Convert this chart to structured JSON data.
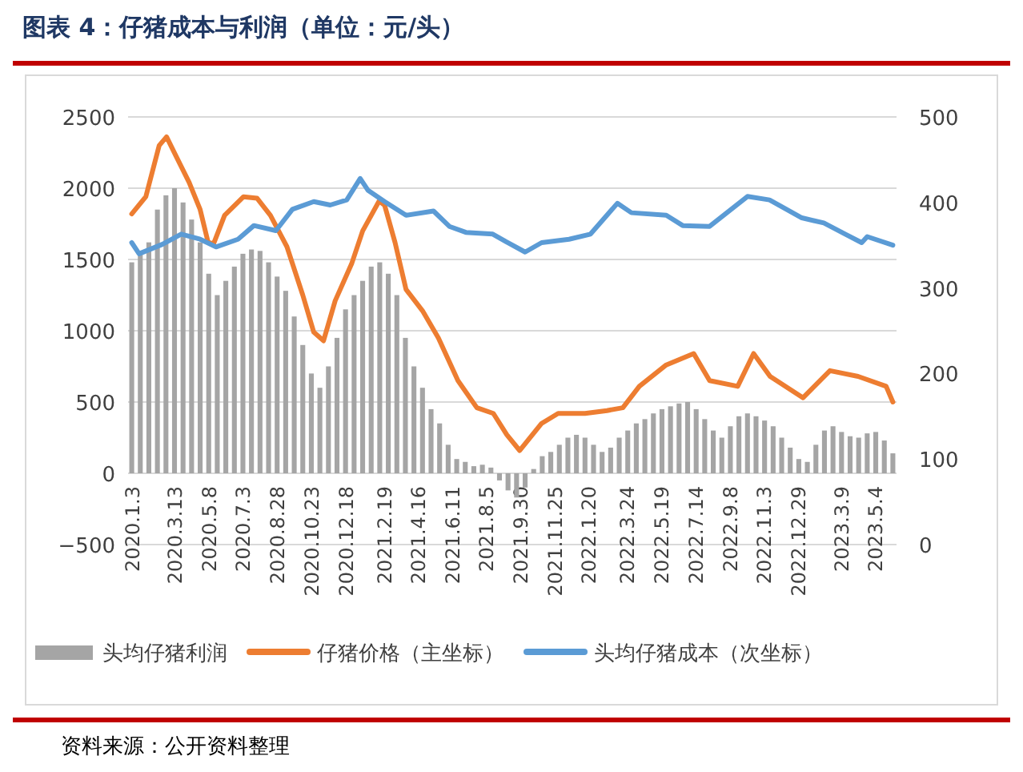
{
  "chart_data": {
    "type": "bar",
    "title": "图表 4：仔猪成本与利润（单位：元/头）",
    "annotations": [
      "资料来源：公开资料整理"
    ],
    "ylim": [
      -500,
      2500
    ],
    "yticks": [
      -500,
      0,
      500,
      1000,
      1500,
      2000,
      2500
    ],
    "y2lim": [
      0,
      500
    ],
    "y2ticks": [
      0,
      100,
      200,
      300,
      400,
      500
    ],
    "xlim": [
      "2019-12-28",
      "2023-06-08"
    ],
    "xticks": [
      {
        "value": "2020-01-03",
        "label": "2020.1.3"
      },
      {
        "value": "2020-03-13",
        "label": "2020.3.13"
      },
      {
        "value": "2020-05-08",
        "label": "2020.5.8"
      },
      {
        "value": "2020-07-03",
        "label": "2020.7.3"
      },
      {
        "value": "2020-08-28",
        "label": "2020.8.28"
      },
      {
        "value": "2020-10-23",
        "label": "2020.10.23"
      },
      {
        "value": "2020-12-18",
        "label": "2020.12.18"
      },
      {
        "value": "2021-02-19",
        "label": "2021.2.19"
      },
      {
        "value": "2021-04-16",
        "label": "2021.4.16"
      },
      {
        "value": "2021-06-11",
        "label": "2021.6.11"
      },
      {
        "value": "2021-08-05",
        "label": "2021.8.5"
      },
      {
        "value": "2021-09-30",
        "label": "2021.9.30"
      },
      {
        "value": "2021-11-25",
        "label": "2021.11.25"
      },
      {
        "value": "2022-01-20",
        "label": "2022.1.20"
      },
      {
        "value": "2022-03-24",
        "label": "2022.3.24"
      },
      {
        "value": "2022-05-19",
        "label": "2022.5.19"
      },
      {
        "value": "2022-07-14",
        "label": "2022.7.14"
      },
      {
        "value": "2022-09-08",
        "label": "2022.9.8"
      },
      {
        "value": "2022-11-03",
        "label": "2022.11.3"
      },
      {
        "value": "2022-12-29",
        "label": "2022.12.29"
      },
      {
        "value": "2023-03-09",
        "label": "2023.3.9"
      },
      {
        "value": "2023-05-04",
        "label": "2023.5.4"
      }
    ],
    "grid": "y",
    "legend": "bottom",
    "series": [
      {
        "name": "头均仔猪利润",
        "color": "#a5a5a5",
        "x": [
          "2020-01-03",
          "2020-01-17",
          "2020-01-31",
          "2020-02-14",
          "2020-02-28",
          "2020-03-13",
          "2020-03-27",
          "2020-04-10",
          "2020-04-24",
          "2020-05-08",
          "2020-05-22",
          "2020-06-05",
          "2020-06-19",
          "2020-07-03",
          "2020-07-17",
          "2020-07-31",
          "2020-08-14",
          "2020-08-28",
          "2020-09-11",
          "2020-09-25",
          "2020-10-09",
          "2020-10-23",
          "2020-11-06",
          "2020-11-20",
          "2020-12-04",
          "2020-12-18",
          "2021-01-01",
          "2021-01-15",
          "2021-01-29",
          "2021-02-12",
          "2021-02-26",
          "2021-03-12",
          "2021-03-26",
          "2021-04-09",
          "2021-04-23",
          "2021-05-07",
          "2021-05-21",
          "2021-06-04",
          "2021-06-18",
          "2021-07-02",
          "2021-07-16",
          "2021-07-30",
          "2021-08-13",
          "2021-08-27",
          "2021-09-10",
          "2021-09-24",
          "2021-10-08",
          "2021-10-22",
          "2021-11-05",
          "2021-11-19",
          "2021-12-03",
          "2021-12-17",
          "2021-12-31",
          "2022-01-14",
          "2022-01-28",
          "2022-02-11",
          "2022-02-25",
          "2022-03-11",
          "2022-03-25",
          "2022-04-08",
          "2022-04-22",
          "2022-05-06",
          "2022-05-20",
          "2022-06-03",
          "2022-06-17",
          "2022-07-01",
          "2022-07-15",
          "2022-07-29",
          "2022-08-12",
          "2022-08-26",
          "2022-09-09",
          "2022-09-23",
          "2022-10-07",
          "2022-10-21",
          "2022-11-04",
          "2022-11-18",
          "2022-12-02",
          "2022-12-16",
          "2022-12-30",
          "2023-01-13",
          "2023-01-27",
          "2023-02-10",
          "2023-02-24",
          "2023-03-10",
          "2023-03-24",
          "2023-04-07",
          "2023-04-21",
          "2023-05-05",
          "2023-05-19",
          "2023-06-02"
        ],
        "values": [
          1480,
          1550,
          1620,
          1850,
          1950,
          2000,
          1900,
          1780,
          1620,
          1400,
          1250,
          1350,
          1450,
          1540,
          1570,
          1560,
          1480,
          1380,
          1280,
          1100,
          900,
          700,
          600,
          750,
          950,
          1150,
          1250,
          1350,
          1450,
          1480,
          1400,
          1250,
          950,
          750,
          600,
          450,
          350,
          200,
          100,
          80,
          50,
          60,
          40,
          -50,
          -120,
          -170,
          -100,
          30,
          120,
          150,
          200,
          250,
          270,
          250,
          200,
          150,
          180,
          250,
          300,
          350,
          380,
          420,
          450,
          470,
          490,
          500,
          450,
          380,
          300,
          250,
          330,
          400,
          420,
          400,
          370,
          330,
          250,
          180,
          100,
          80,
          200,
          300,
          330,
          290,
          260,
          250,
          280,
          290,
          230,
          140
        ]
      },
      {
        "name": "仔猪价格（主坐标）",
        "type": "line",
        "color": "#ed7d31",
        "x": [
          "2020-01-03",
          "2020-01-26",
          "2020-02-17",
          "2020-02-29",
          "2020-03-15",
          "2020-04-06",
          "2020-04-24",
          "2020-05-07",
          "2020-05-16",
          "2020-06-03",
          "2020-07-04",
          "2020-07-26",
          "2020-08-17",
          "2020-09-13",
          "2020-10-09",
          "2020-10-27",
          "2020-11-12",
          "2020-12-01",
          "2020-12-28",
          "2021-01-15",
          "2021-02-11",
          "2021-02-20",
          "2021-03-09",
          "2021-03-27",
          "2021-04-23",
          "2021-05-19",
          "2021-06-20",
          "2021-07-21",
          "2021-08-17",
          "2021-09-08",
          "2021-09-29",
          "2021-11-04",
          "2021-12-01",
          "2022-01-14",
          "2022-02-19",
          "2022-03-17",
          "2022-04-13",
          "2022-05-27",
          "2022-07-11",
          "2022-08-06",
          "2022-09-21",
          "2022-10-17",
          "2022-11-13",
          "2023-01-06",
          "2023-02-19",
          "2023-04-06",
          "2023-05-22",
          "2023-06-02"
        ],
        "values": [
          1820,
          1940,
          2300,
          2360,
          2230,
          2040,
          1850,
          1620,
          1610,
          1810,
          1940,
          1930,
          1810,
          1590,
          1250,
          990,
          930,
          1210,
          1470,
          1700,
          1910,
          1880,
          1620,
          1290,
          1140,
          950,
          650,
          460,
          420,
          270,
          160,
          350,
          420,
          420,
          440,
          460,
          610,
          760,
          840,
          650,
          610,
          840,
          680,
          530,
          720,
          680,
          610,
          500
        ]
      },
      {
        "name": "头均仔猪成本（次坐标）",
        "type": "line",
        "axis": "y2",
        "color": "#5b9bd5",
        "x": [
          "2020-01-03",
          "2020-01-15",
          "2020-02-22",
          "2020-03-24",
          "2020-04-24",
          "2020-05-20",
          "2020-06-25",
          "2020-07-21",
          "2020-08-26",
          "2020-09-22",
          "2020-10-27",
          "2020-11-23",
          "2020-12-20",
          "2021-01-11",
          "2021-01-24",
          "2021-02-20",
          "2021-03-27",
          "2021-05-11",
          "2021-06-06",
          "2021-07-03",
          "2021-08-16",
          "2021-09-07",
          "2021-10-08",
          "2021-11-04",
          "2021-12-19",
          "2022-01-23",
          "2022-03-08",
          "2022-03-31",
          "2022-05-27",
          "2022-06-23",
          "2022-08-06",
          "2022-10-07",
          "2022-11-12",
          "2023-01-04",
          "2023-02-09",
          "2023-03-16",
          "2023-04-12",
          "2023-04-21",
          "2023-06-02"
        ],
        "values": [
          353,
          340,
          351,
          363,
          357,
          348,
          357,
          373,
          367,
          392,
          401,
          397,
          403,
          428,
          414,
          401,
          385,
          390,
          372,
          365,
          363,
          354,
          342,
          353,
          357,
          363,
          399,
          388,
          385,
          373,
          372,
          407,
          403,
          382,
          376,
          363,
          353,
          360,
          350
        ]
      }
    ]
  }
}
